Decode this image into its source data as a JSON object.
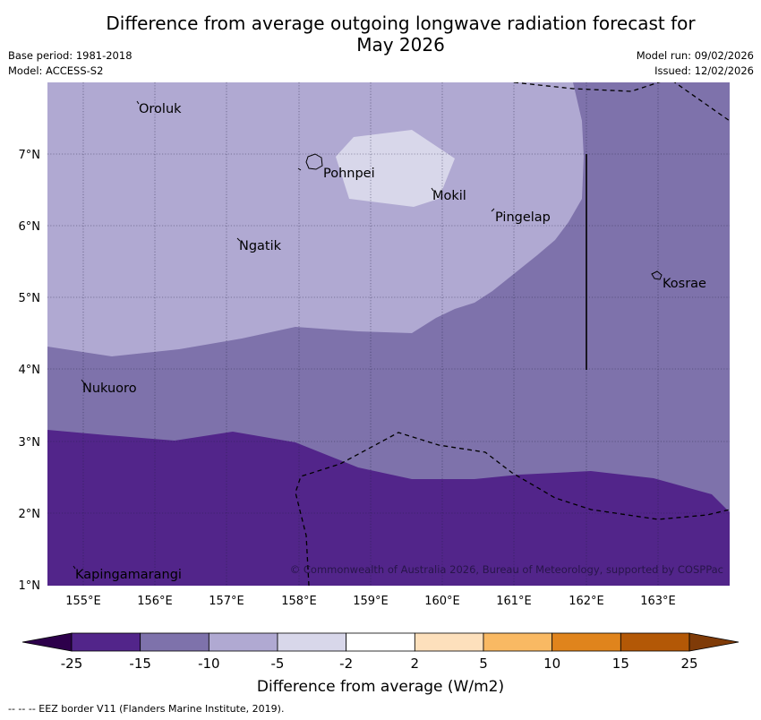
{
  "header": {
    "title_line1": "Difference from average outgoing longwave radiation forecast for",
    "title_line2": "May 2026",
    "base_period": "Base period: 1981-2018",
    "model": "Model: ACCESS-S2",
    "model_run": "Model run: 09/02/2026",
    "issued": "Issued: 12/02/2026"
  },
  "map": {
    "lon_labels": [
      "155°E",
      "156°E",
      "157°E",
      "158°E",
      "159°E",
      "160°E",
      "161°E",
      "162°E",
      "163°E"
    ],
    "lat_labels": [
      "7°N",
      "6°N",
      "5°N",
      "4°N",
      "3°N",
      "2°N",
      "1°N"
    ],
    "places": [
      "Oroluk",
      "Pohnpei",
      "Mokil",
      "Pingelap",
      "Ngatik",
      "Kosrae",
      "Nukuoro",
      "Kapingamarangi"
    ],
    "copyright": "© Commonwealth of Australia 2026, Bureau of Meteorology, supported by COSPPac",
    "colors": {
      "deep_neg": "#52258a",
      "mid_neg": "#7e72ab",
      "light_neg": "#b0a9d2",
      "pale_neg": "#d8d7ea"
    }
  },
  "colorbar": {
    "ticks": [
      "-25",
      "-15",
      "-10",
      "-5",
      "-2",
      "2",
      "5",
      "10",
      "15",
      "25"
    ],
    "colors": [
      "#52258a",
      "#7e72ab",
      "#b0a9d2",
      "#d8d7ea",
      "#ffffff",
      "#fde0bc",
      "#f9b963",
      "#e0841c",
      "#b35806"
    ],
    "extend_low_color": "#2d004b",
    "extend_high_color": "#7f3b08",
    "label": "Difference from average (W/m2)"
  },
  "legend": {
    "eez_note": "--  --  -- EEZ border V11 (Flanders Marine Institute, 2019)."
  }
}
